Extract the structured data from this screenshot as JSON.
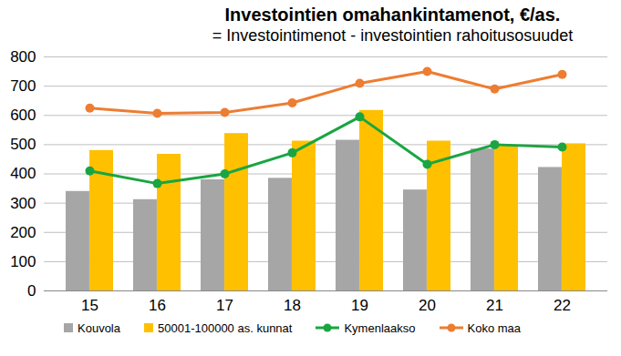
{
  "chart_data": {
    "type": "bar",
    "title": "Investointien omahankintamenot, €/as.",
    "subtitle": "= Investointimenot - investointien rahoitusosuudet",
    "categories": [
      "15",
      "16",
      "17",
      "18",
      "19",
      "20",
      "21",
      "22"
    ],
    "series": [
      {
        "name": "Kouvola",
        "type": "bar",
        "color": "#a6a6a6",
        "values": [
          340,
          312,
          380,
          385,
          515,
          345,
          485,
          422
        ]
      },
      {
        "name": "50001-100000 as. kunnat",
        "type": "bar",
        "color": "#ffc000",
        "values": [
          480,
          467,
          538,
          512,
          617,
          512,
          497,
          503
        ]
      },
      {
        "name": "Kymenlaakso",
        "type": "line",
        "color": "#1aa542",
        "marker": "circle",
        "values": [
          410,
          367,
          400,
          472,
          595,
          433,
          500,
          492
        ]
      },
      {
        "name": "Koko maa",
        "type": "line",
        "color": "#ed7d31",
        "marker": "circle",
        "values": [
          625,
          607,
          610,
          643,
          710,
          750,
          690,
          740
        ]
      }
    ],
    "ylim": [
      0,
      800
    ],
    "yticks": [
      0,
      100,
      200,
      300,
      400,
      500,
      600,
      700,
      800
    ],
    "grid": true,
    "legend": "bottom"
  }
}
